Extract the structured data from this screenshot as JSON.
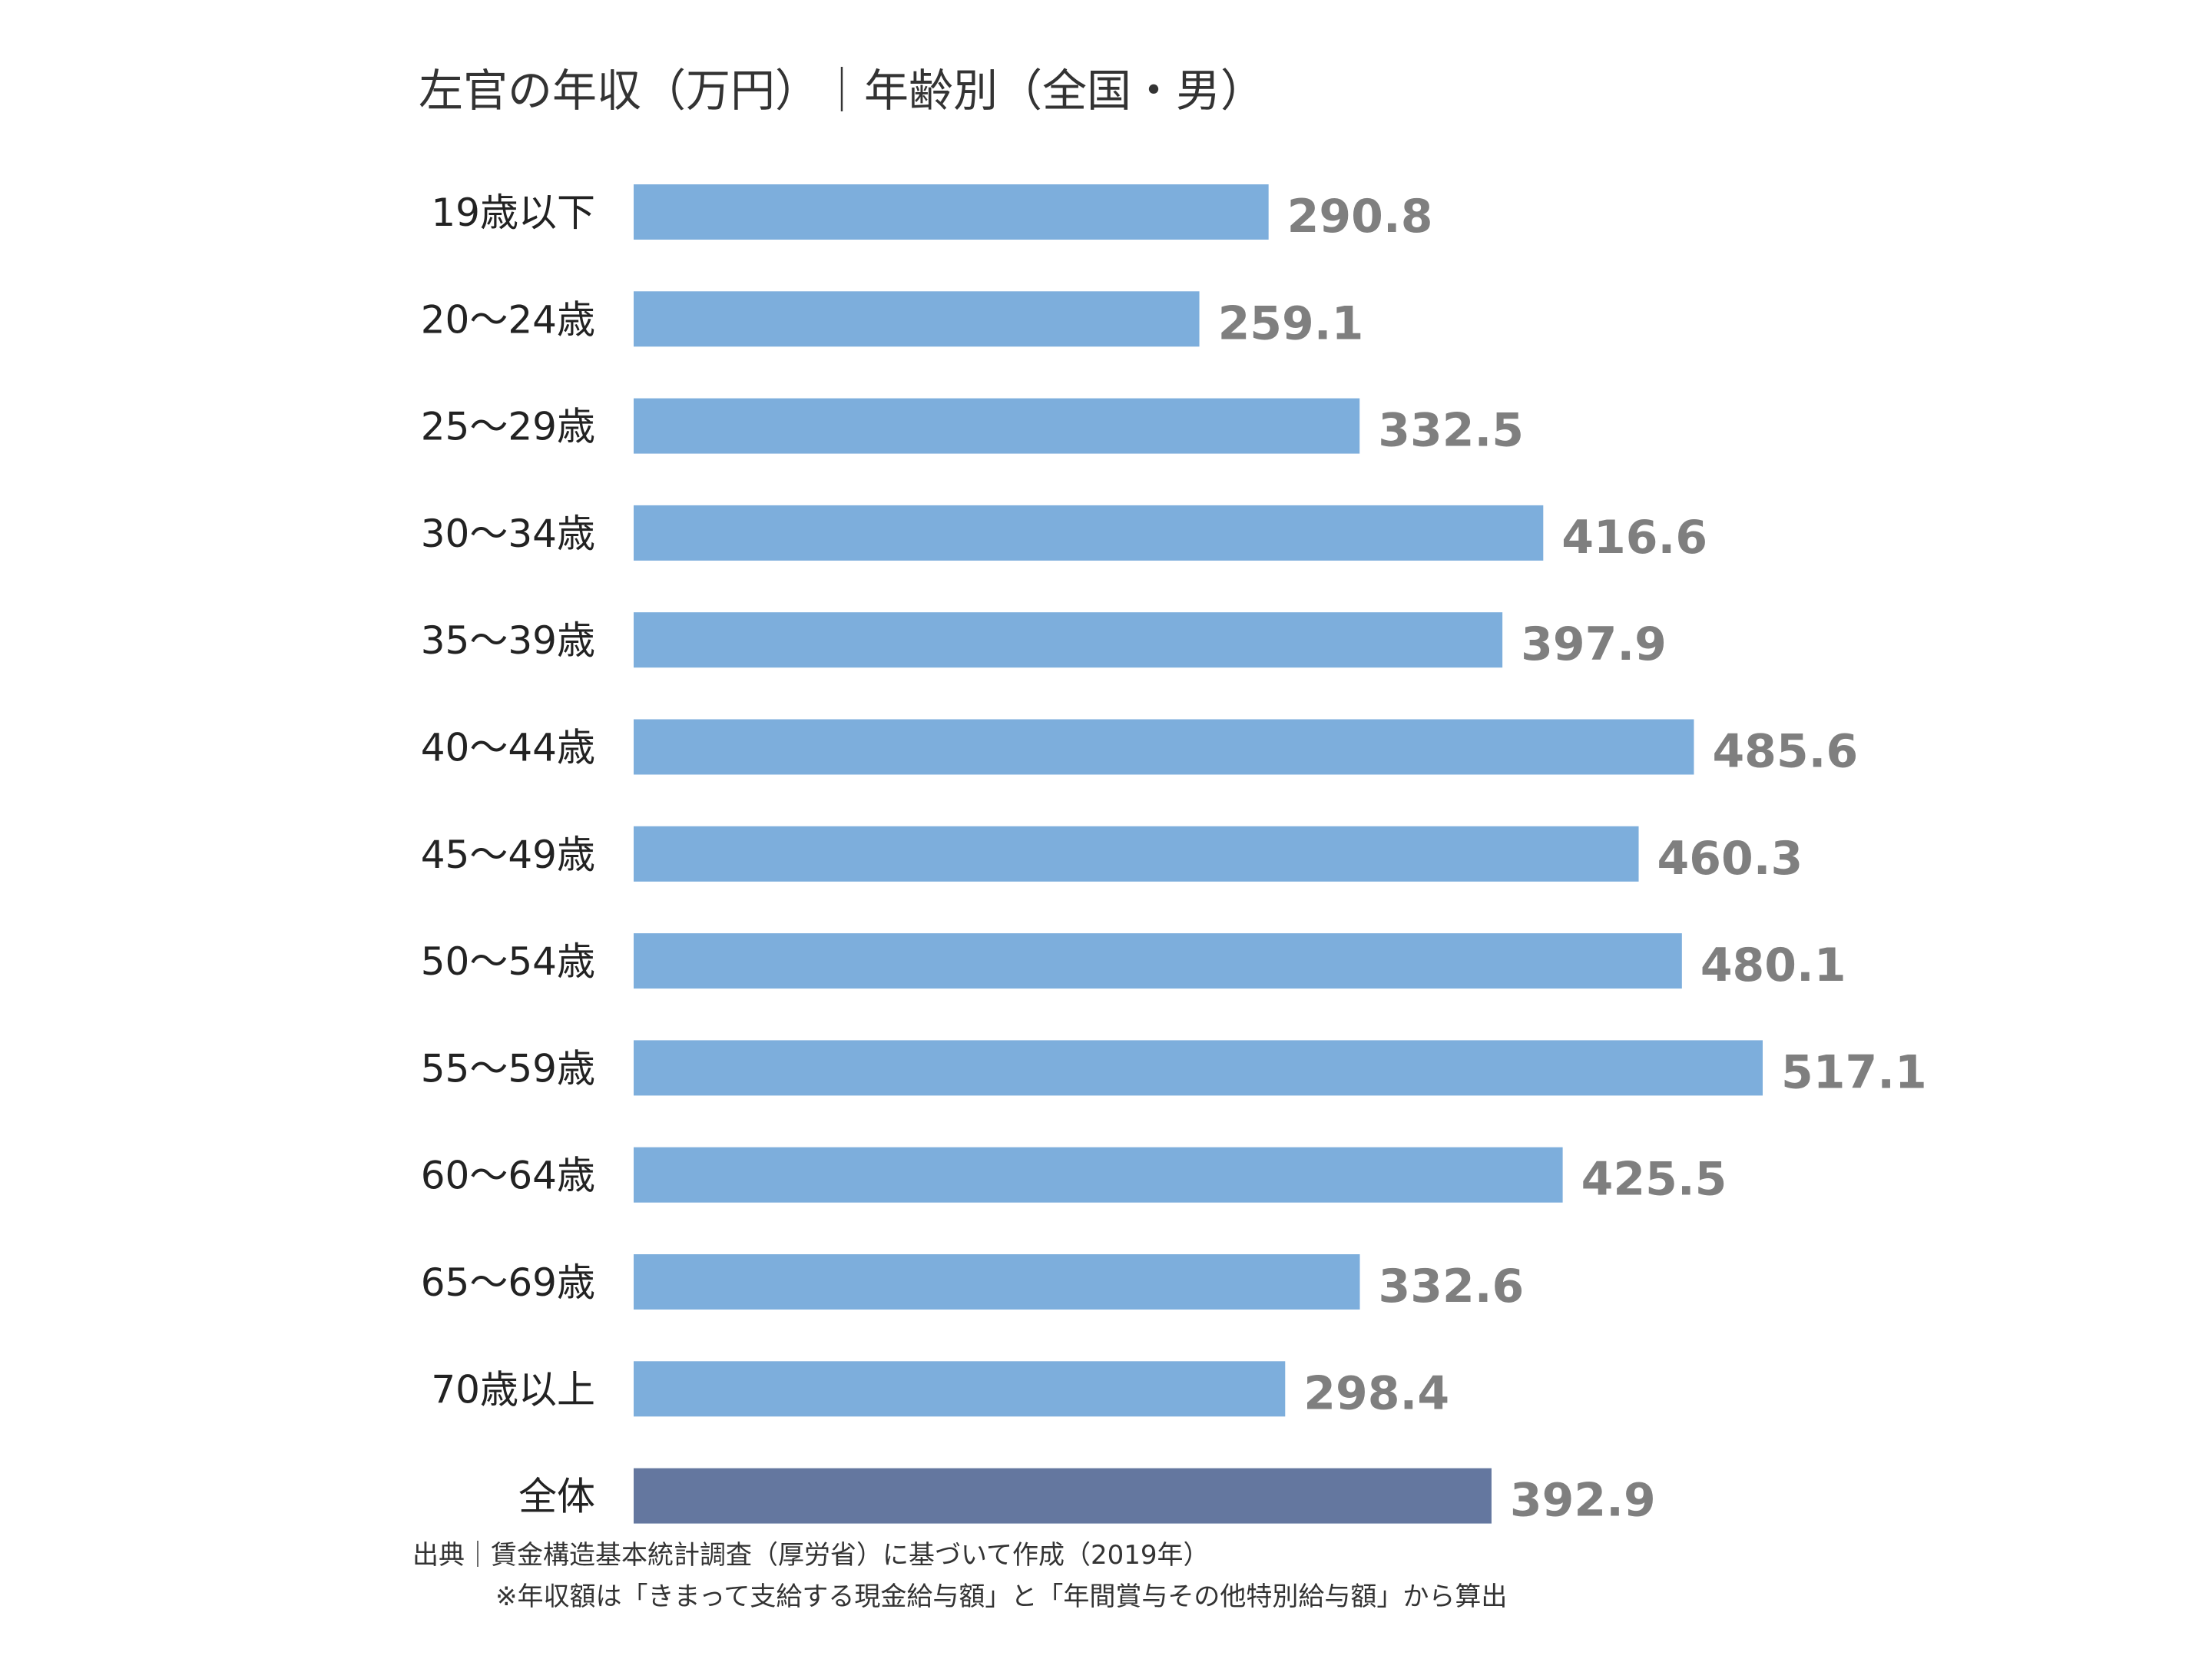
{
  "chart_data": {
    "type": "bar",
    "orientation": "horizontal",
    "title": "左官の年収（万円）｜年齢別（全国・男）",
    "categories": [
      "19歳以下",
      "20～24歳",
      "25～29歳",
      "30～34歳",
      "35～39歳",
      "40～44歳",
      "45～49歳",
      "50～54歳",
      "55～59歳",
      "60～64歳",
      "65～69歳",
      "70歳以上",
      "全体"
    ],
    "values": [
      290.8,
      259.1,
      332.5,
      416.6,
      397.9,
      485.6,
      460.3,
      480.1,
      517.1,
      425.5,
      332.6,
      298.4,
      392.9
    ],
    "value_labels": [
      "290.8",
      "259.1",
      "332.5",
      "416.6",
      "397.9",
      "485.6",
      "460.3",
      "480.1",
      "517.1",
      "425.5",
      "332.6",
      "298.4",
      "392.9"
    ],
    "xlim": [
      0,
      517.1
    ],
    "grid": false,
    "legend": "none",
    "colors": {
      "bar": "#7daedc",
      "bar_highlight": "#64779f",
      "value_label": "#7f7f7f",
      "category_label": "#222222",
      "title": "#333333"
    },
    "highlight_index": 12
  },
  "source_note": "出典｜賃金構造基本統計調査（厚労省）に基づいて作成（2019年）",
  "calc_note": "※年収額は「きまって支給する現金給与額」と「年間賞与その他特別給与額」から算出"
}
